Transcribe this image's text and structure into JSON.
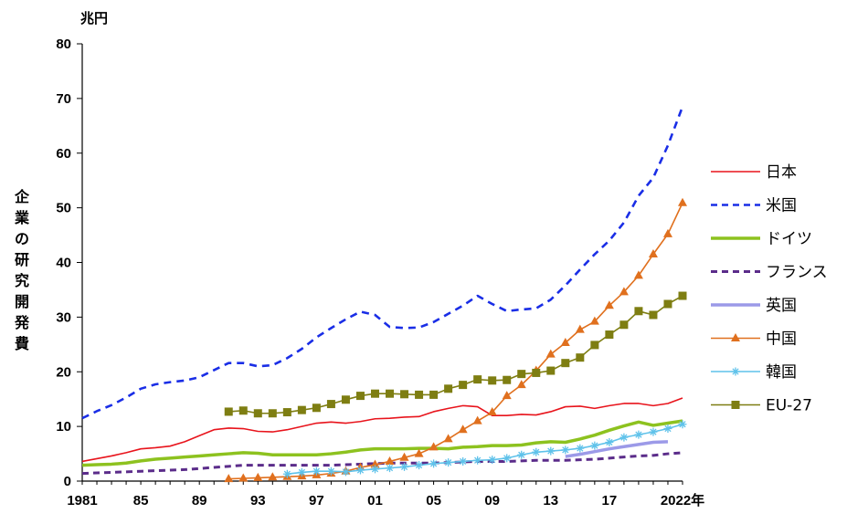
{
  "chart_data": {
    "type": "line",
    "title": "",
    "y_unit": "兆円",
    "ylabel": "企業の研究開発費",
    "x_start": 1981,
    "x_end": 2022,
    "x_tick_labels": [
      {
        "year": 1981,
        "text": "1981"
      },
      {
        "year": 1985,
        "text": "85"
      },
      {
        "year": 1989,
        "text": "89"
      },
      {
        "year": 1993,
        "text": "93"
      },
      {
        "year": 1997,
        "text": "97"
      },
      {
        "year": 2001,
        "text": "01"
      },
      {
        "year": 2005,
        "text": "05"
      },
      {
        "year": 2009,
        "text": "09"
      },
      {
        "year": 2013,
        "text": "13"
      },
      {
        "year": 2017,
        "text": "17"
      },
      {
        "year": 2022,
        "text": "2022年"
      }
    ],
    "ylim": [
      0,
      80
    ],
    "y_ticks": [
      0,
      10,
      20,
      30,
      40,
      50,
      60,
      70,
      80
    ],
    "grid": false,
    "legend_position": "right",
    "series": [
      {
        "name": "日本",
        "color": "#e8141c",
        "style": "solid",
        "marker": "none",
        "start": 1981,
        "values": [
          3.6,
          4.1,
          4.6,
          5.2,
          5.9,
          6.1,
          6.4,
          7.2,
          8.3,
          9.4,
          9.7,
          9.6,
          9.1,
          9.0,
          9.4,
          10.0,
          10.6,
          10.8,
          10.6,
          10.9,
          11.4,
          11.5,
          11.7,
          11.8,
          12.7,
          13.3,
          13.8,
          13.6,
          12.0,
          12.0,
          12.2,
          12.1,
          12.7,
          13.6,
          13.7,
          13.3,
          13.8,
          14.2,
          14.2,
          13.8,
          14.2,
          15.2
        ]
      },
      {
        "name": "米国",
        "color": "#1a2ee6",
        "style": "dashed",
        "marker": "none",
        "start": 1981,
        "values": [
          11.5,
          12.8,
          13.9,
          15.3,
          16.9,
          17.7,
          18.1,
          18.4,
          19.0,
          20.3,
          21.6,
          21.6,
          21.0,
          21.2,
          22.5,
          24.2,
          26.3,
          28.0,
          29.6,
          31.0,
          30.4,
          28.2,
          28.0,
          28.1,
          29.1,
          30.6,
          32.1,
          33.9,
          32.4,
          31.1,
          31.4,
          31.6,
          33.2,
          35.8,
          38.7,
          41.5,
          44.0,
          47.3,
          52.2,
          55.5,
          61.4,
          68.5
        ]
      },
      {
        "name": "ドイツ",
        "color": "#8dc21f",
        "style": "solid",
        "marker": "none",
        "start": 1981,
        "values": [
          2.9,
          3.0,
          3.1,
          3.3,
          3.7,
          4.0,
          4.2,
          4.4,
          4.6,
          4.8,
          5.0,
          5.2,
          5.1,
          4.8,
          4.8,
          4.8,
          4.8,
          5.0,
          5.3,
          5.7,
          5.9,
          5.9,
          5.9,
          6.0,
          6.0,
          5.9,
          6.2,
          6.3,
          6.5,
          6.5,
          6.6,
          7.0,
          7.2,
          7.1,
          7.7,
          8.4,
          9.3,
          10.1,
          10.8,
          10.2,
          10.6,
          11.0
        ]
      },
      {
        "name": "フランス",
        "color": "#5b2c8a",
        "style": "dashed",
        "marker": "none",
        "start": 1981,
        "values": [
          1.4,
          1.5,
          1.6,
          1.7,
          1.8,
          1.9,
          2.0,
          2.1,
          2.3,
          2.5,
          2.7,
          2.9,
          2.9,
          2.9,
          2.9,
          2.9,
          2.9,
          2.9,
          3.0,
          3.1,
          3.2,
          3.3,
          3.3,
          3.3,
          3.3,
          3.4,
          3.5,
          3.6,
          3.6,
          3.6,
          3.7,
          3.8,
          3.8,
          3.8,
          3.9,
          4.0,
          4.2,
          4.4,
          4.6,
          4.7,
          5.0,
          5.2
        ]
      },
      {
        "name": "英国",
        "color": "#9c9ae8",
        "style": "solid",
        "marker": "none",
        "start": 2014,
        "values": [
          4.5,
          4.9,
          5.4,
          5.9,
          6.3,
          6.7,
          7.1,
          7.2
        ]
      },
      {
        "name": "中国",
        "color": "#e0701e",
        "style": "solid",
        "marker": "triangle",
        "start": 1991,
        "values": [
          0.4,
          0.5,
          0.6,
          0.7,
          0.8,
          0.9,
          1.1,
          1.4,
          1.8,
          2.5,
          3.0,
          3.6,
          4.3,
          5.0,
          6.2,
          7.7,
          9.4,
          11.0,
          12.6,
          15.6,
          17.6,
          20.2,
          23.2,
          25.3,
          27.7,
          29.2,
          32.1,
          34.6,
          37.6,
          41.5,
          45.2,
          50.9
        ]
      },
      {
        "name": "韓国",
        "color": "#5fc2ea",
        "style": "solid",
        "marker": "star",
        "start": 1995,
        "values": [
          1.3,
          1.6,
          1.8,
          1.8,
          1.7,
          2.0,
          2.2,
          2.4,
          2.6,
          2.9,
          3.2,
          3.4,
          3.6,
          3.8,
          3.9,
          4.2,
          4.8,
          5.3,
          5.5,
          5.7,
          6.0,
          6.5,
          7.1,
          8.0,
          8.5,
          9.0,
          9.6,
          10.4
        ]
      },
      {
        "name": "EU-27",
        "color": "#7e7e12",
        "style": "solid",
        "marker": "square",
        "start": 1991,
        "values": [
          12.7,
          12.9,
          12.4,
          12.4,
          12.6,
          13.0,
          13.4,
          14.1,
          14.9,
          15.6,
          16.0,
          16.0,
          15.9,
          15.8,
          15.8,
          16.9,
          17.6,
          18.6,
          18.4,
          18.5,
          19.6,
          19.8,
          20.2,
          21.6,
          22.6,
          24.9,
          26.8,
          28.6,
          31.1,
          30.4,
          32.4,
          33.9
        ]
      }
    ]
  }
}
